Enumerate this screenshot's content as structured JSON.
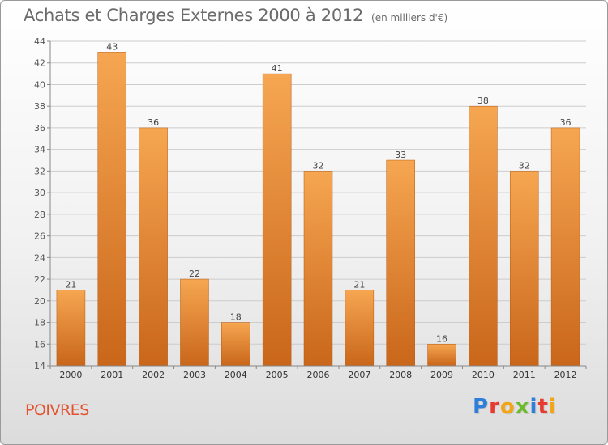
{
  "header": {
    "title": "Achats et Charges Externes 2000 à 2012",
    "subtitle": "(en milliers d'€)"
  },
  "location": {
    "name": "POIVRES"
  },
  "brand": {
    "logo_letters": [
      "P",
      "r",
      "o",
      "x",
      "i",
      "t",
      "i"
    ],
    "logo_colors": [
      "#2f7fd8",
      "#e63b2e",
      "#f2a516",
      "#6dbb2c",
      "#2f7fd8",
      "#e63b2e",
      "#f2a516"
    ]
  },
  "colors": {
    "bar_top": "#f6a651",
    "bar_bottom": "#c9661a",
    "grid": "#cccccc",
    "axis": "#888888"
  },
  "chart_data": {
    "type": "bar",
    "title": "Achats et Charges Externes 2000 à 2012",
    "subtitle": "(en milliers d'€)",
    "categories": [
      "2000",
      "2001",
      "2002",
      "2003",
      "2004",
      "2005",
      "2006",
      "2007",
      "2008",
      "2009",
      "2010",
      "2011",
      "2012"
    ],
    "values": [
      21,
      43,
      36,
      22,
      18,
      41,
      32,
      21,
      33,
      16,
      38,
      32,
      36
    ],
    "ylim": [
      14,
      44
    ],
    "yticks": [
      14,
      16,
      18,
      20,
      22,
      24,
      26,
      28,
      30,
      32,
      34,
      36,
      38,
      40,
      42,
      44
    ],
    "grid": true,
    "data_labels": true
  }
}
